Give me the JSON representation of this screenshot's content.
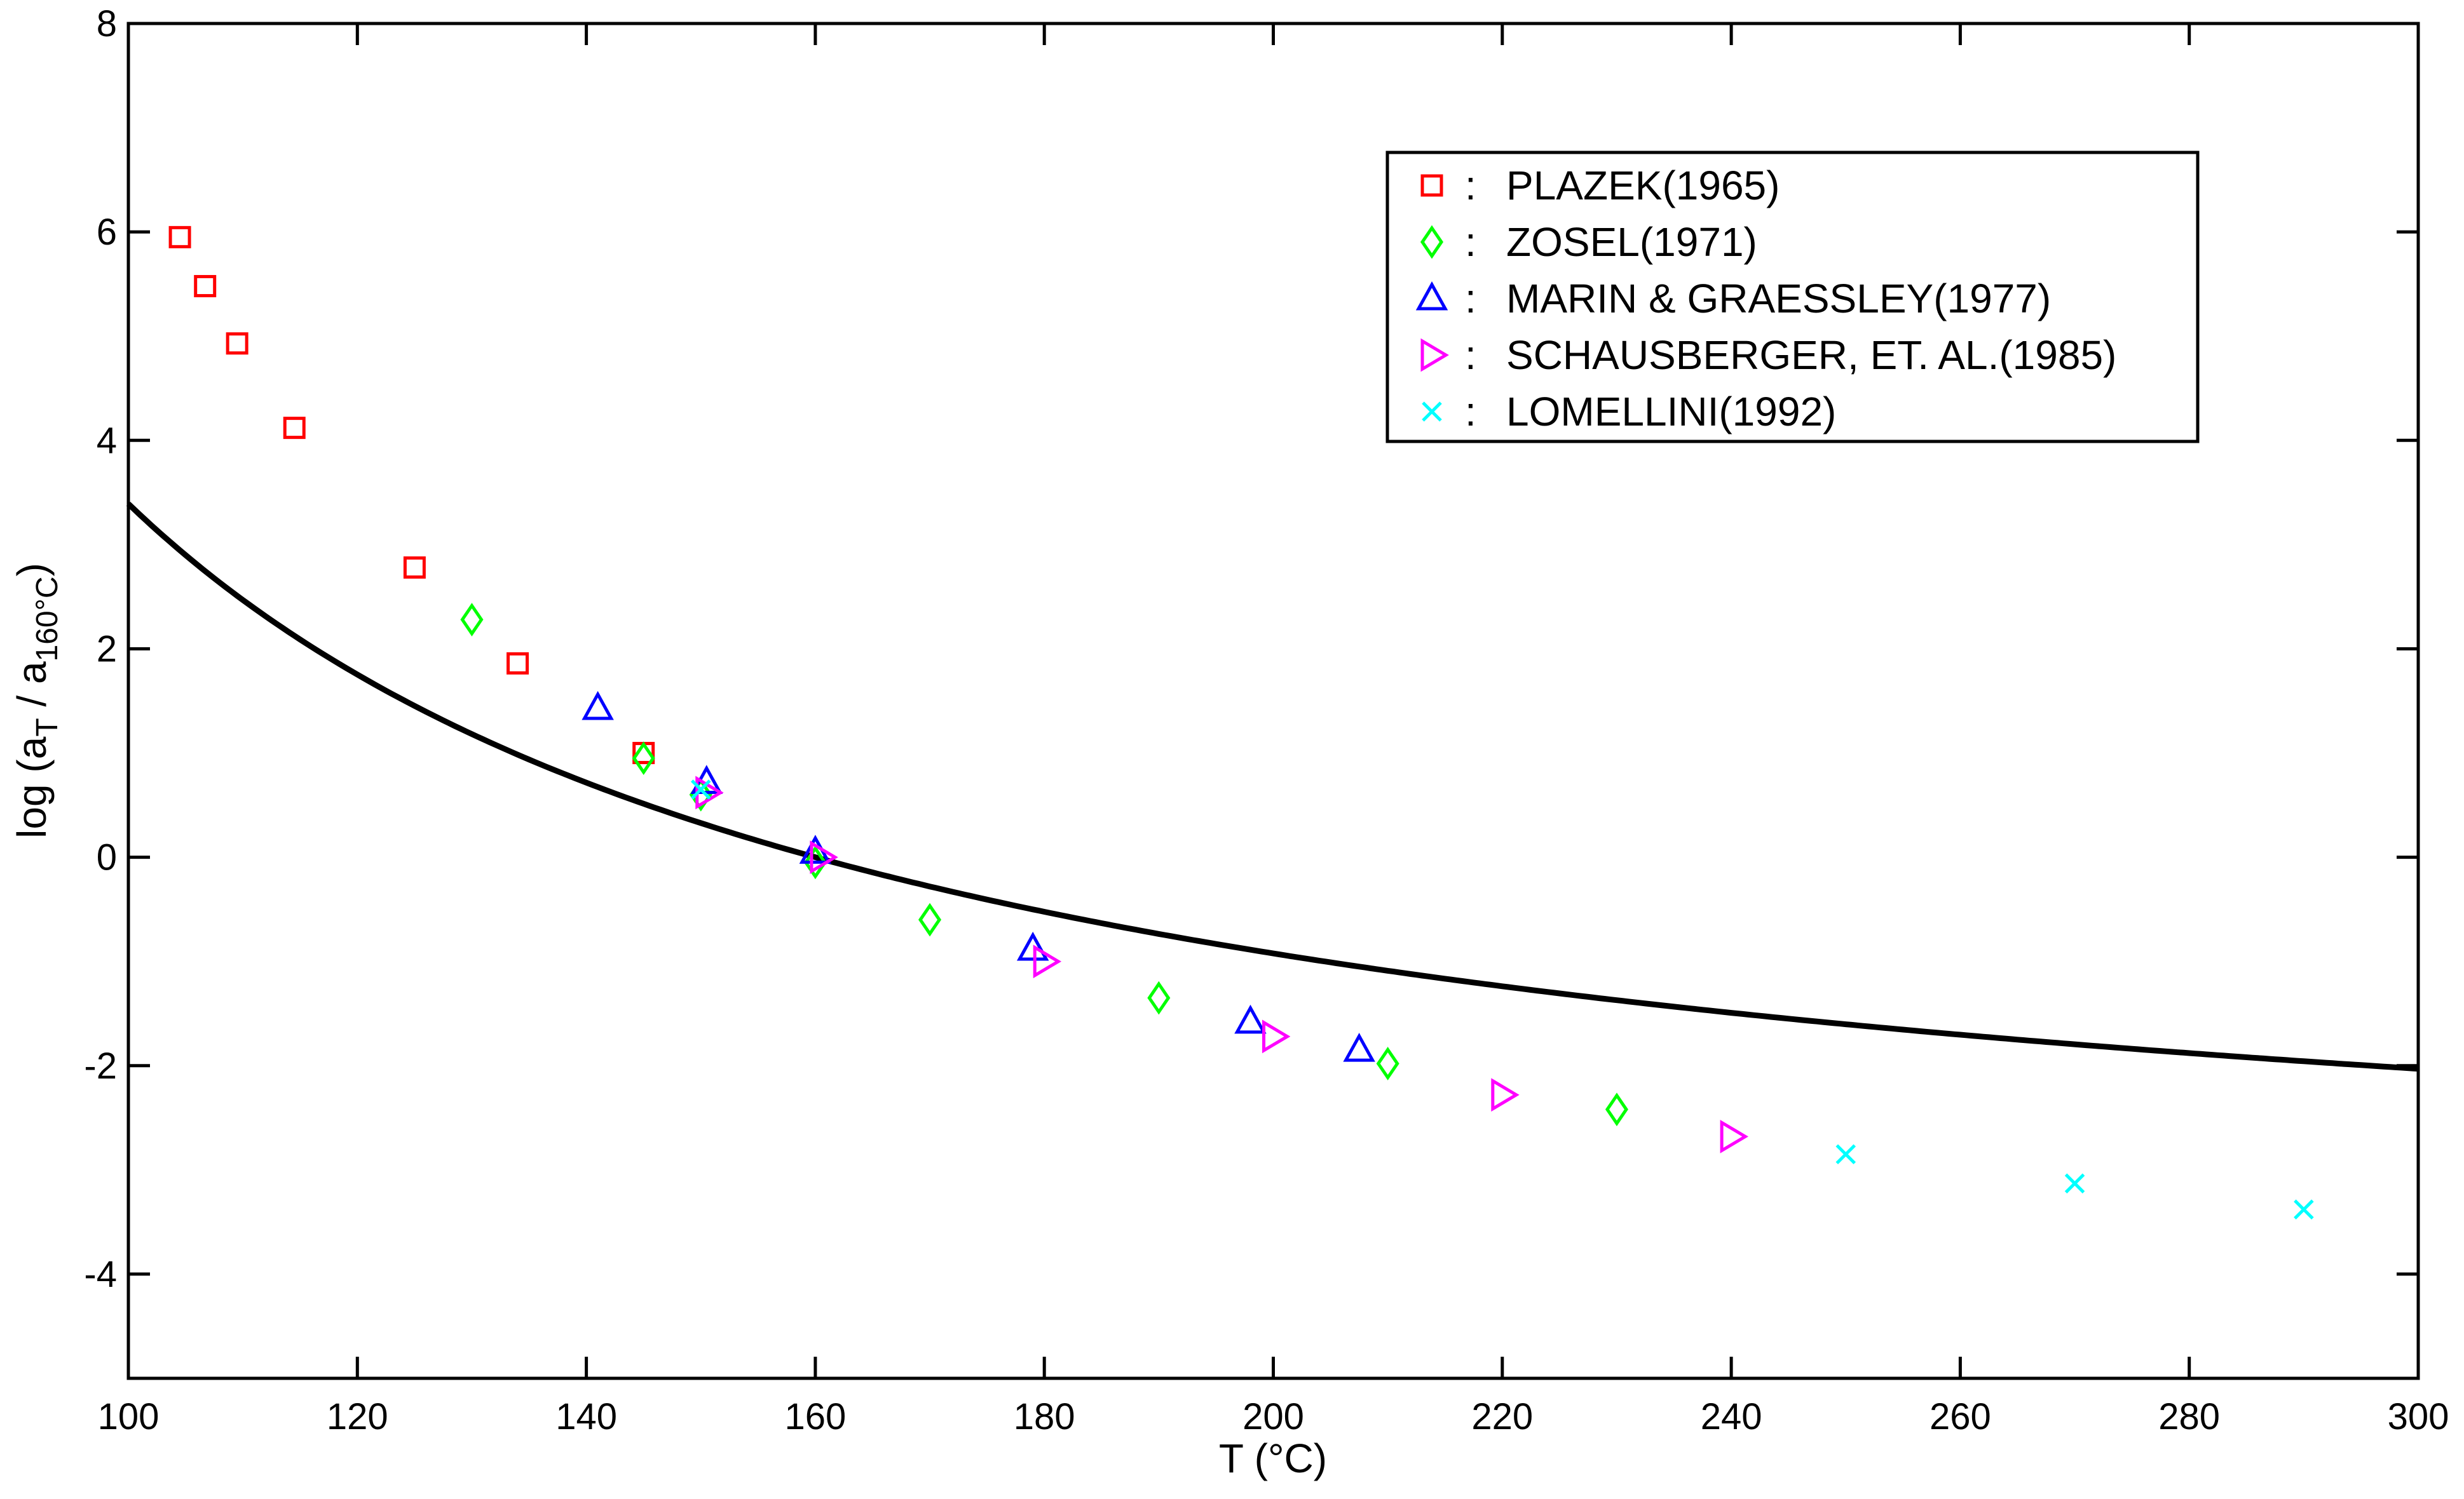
{
  "chart_data": {
    "type": "scatter",
    "title": "",
    "xlabel": "T (°C)",
    "ylabel": {
      "prefix": "log (a",
      "sub1": "T",
      "middle": " / a",
      "sub2": "160°C",
      "suffix": ")"
    },
    "xlim": [
      100,
      300
    ],
    "ylim": [
      -5,
      8
    ],
    "x_ticks": [
      100,
      120,
      140,
      160,
      180,
      200,
      220,
      240,
      260,
      280,
      300
    ],
    "y_ticks": [
      -4,
      -2,
      0,
      2,
      4,
      6,
      8
    ],
    "x_tick_labels": [
      "100",
      "120",
      "140",
      "160",
      "180",
      "200",
      "220",
      "240",
      "260",
      "280",
      "300"
    ],
    "y_tick_labels": [
      "-4",
      "-2",
      "0",
      "2",
      "4",
      "6",
      "8"
    ],
    "grid": false,
    "legend_position": "top-right",
    "fit_curve": {
      "model": "WLF",
      "T_ref": 160,
      "C1": 3.9,
      "C2": 129,
      "color": "#000000",
      "x_range": [
        100,
        300
      ]
    },
    "series": [
      {
        "name": "PLAZEK(1965)",
        "marker": "square",
        "color": "#ff0000",
        "points": [
          [
            104.5,
            5.95
          ],
          [
            106.7,
            5.48
          ],
          [
            109.5,
            4.93
          ],
          [
            114.5,
            4.12
          ],
          [
            125,
            2.78
          ],
          [
            134,
            1.86
          ],
          [
            145,
            1.0
          ]
        ]
      },
      {
        "name": "ZOSEL(1971)",
        "marker": "diamond",
        "color": "#00ff00",
        "points": [
          [
            130,
            2.28
          ],
          [
            145,
            0.95
          ],
          [
            150,
            0.6
          ],
          [
            160,
            -0.05
          ],
          [
            170,
            -0.6
          ],
          [
            190,
            -1.35
          ],
          [
            210,
            -1.98
          ],
          [
            230,
            -2.42
          ]
        ]
      },
      {
        "name": "MARIN & GRAESSLEY(1977)",
        "marker": "triangle-up",
        "color": "#0000ff",
        "points": [
          [
            141,
            1.43
          ],
          [
            150.5,
            0.72
          ],
          [
            160,
            0.05
          ],
          [
            179,
            -0.88
          ],
          [
            198,
            -1.58
          ],
          [
            207.5,
            -1.85
          ]
        ]
      },
      {
        "name": "SCHAUSBERGER, ET. AL.(1985)",
        "marker": "triangle-right",
        "color": "#ff00ff",
        "points": [
          [
            150.5,
            0.62
          ],
          [
            160.5,
            0.0
          ],
          [
            180,
            -1.0
          ],
          [
            200,
            -1.72
          ],
          [
            220,
            -2.28
          ],
          [
            240,
            -2.68
          ]
        ]
      },
      {
        "name": "LOMELLINI(1992)",
        "marker": "x",
        "color": "#00ffff",
        "points": [
          [
            150,
            0.65
          ],
          [
            250,
            -2.85
          ],
          [
            270,
            -3.13
          ],
          [
            290,
            -3.38
          ]
        ]
      }
    ],
    "legend_separator": ":"
  }
}
